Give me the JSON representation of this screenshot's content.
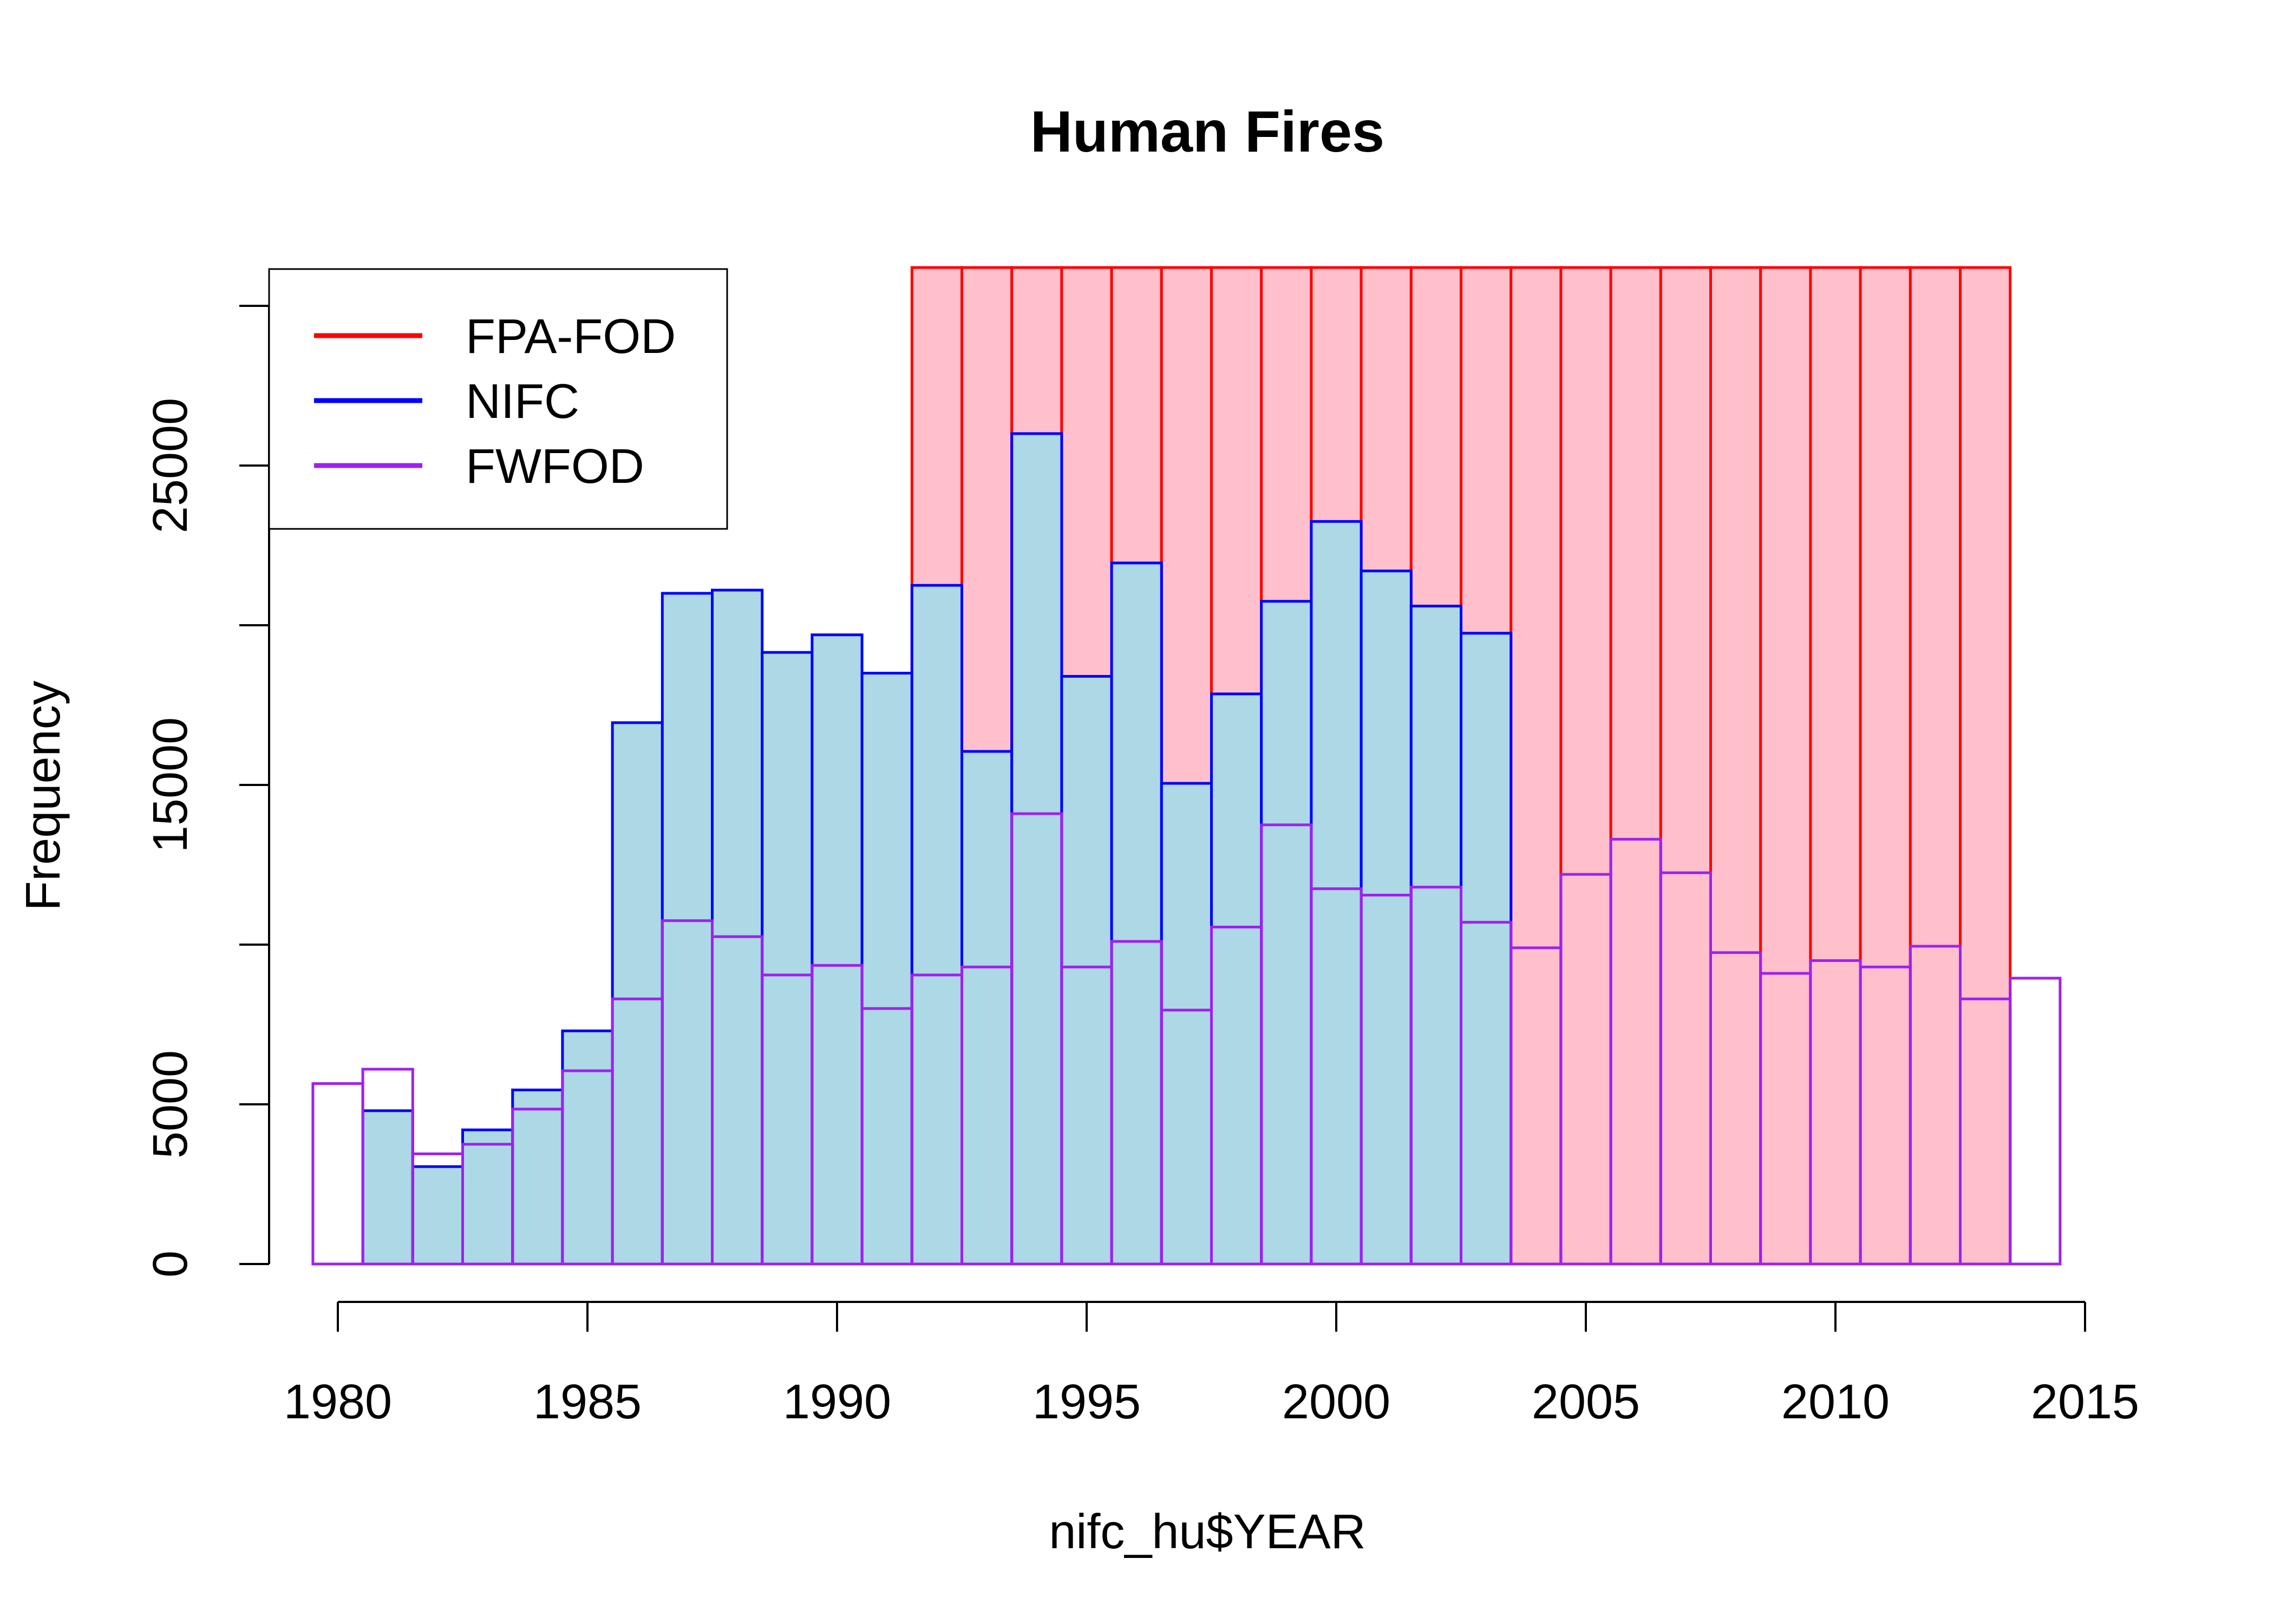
{
  "chart_data": {
    "type": "bar",
    "title": "Human Fires",
    "xlabel": "nifc_hu$YEAR",
    "ylabel": "Frequency",
    "x_ticks": [
      1980,
      1985,
      1990,
      1995,
      2000,
      2005,
      2010,
      2015
    ],
    "y_ticks": [
      0,
      5000,
      15000,
      25000
    ],
    "y_minor_ticks": [
      10000,
      20000,
      30000
    ],
    "xlim": [
      1979,
      2015
    ],
    "ylim": [
      0,
      31200
    ],
    "legend_position": "top-left",
    "grid": false,
    "series": [
      {
        "name": "FPA-FOD",
        "line_color": "#ff0000",
        "fill_color": "#ffc0cb",
        "start_year": 1992,
        "values": [
          31200,
          31200,
          31200,
          31200,
          31200,
          31200,
          31200,
          31200,
          31200,
          31200,
          31200,
          31200,
          31200,
          31200,
          31200,
          31200,
          31200,
          31200,
          31200,
          31200,
          31200,
          31200
        ]
      },
      {
        "name": "NIFC",
        "line_color": "#0000ff",
        "fill_color": "#add8e6",
        "start_year": 1981,
        "values": [
          4800,
          3050,
          4200,
          5450,
          7300,
          16950,
          21000,
          21100,
          19150,
          19700,
          18500,
          21250,
          16050,
          26000,
          18400,
          21950,
          15050,
          17850,
          20750,
          23250,
          21700,
          20600,
          19750
        ]
      },
      {
        "name": "FWFOD",
        "line_color": "#a020f0",
        "fill_color": "none",
        "start_year": 1980,
        "values": [
          5650,
          6100,
          3450,
          3750,
          4850,
          6050,
          8300,
          10750,
          10250,
          9050,
          9350,
          8000,
          9050,
          9300,
          14100,
          9300,
          10100,
          7950,
          10550,
          13750,
          11750,
          11550,
          11800,
          10700,
          9900,
          12200,
          13300,
          12250,
          9750,
          9100,
          9500,
          9300,
          9950,
          8300,
          8950
        ]
      }
    ]
  }
}
